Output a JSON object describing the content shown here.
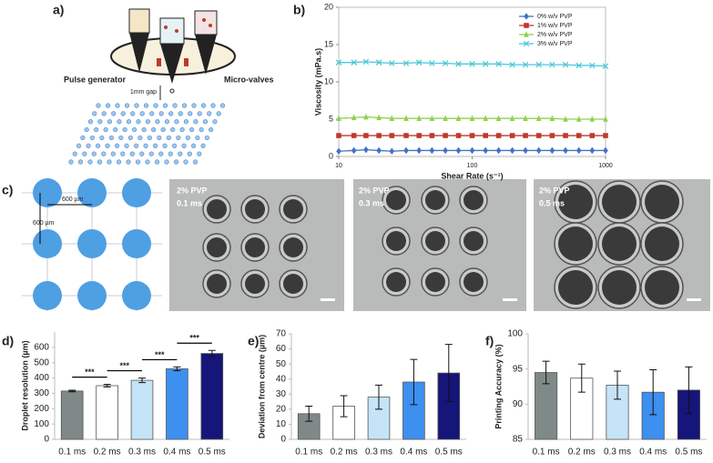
{
  "figure": {
    "panel_labels": [
      "a)",
      "b)",
      "c)",
      "d)",
      "e)",
      "f)"
    ],
    "schematic_labels": [
      "Pulse generator",
      "Micro-valves",
      "1mm gap"
    ],
    "grid_labels": [
      "600 µm",
      "600 µm"
    ],
    "micrographs": [
      {
        "label": "2% PVP",
        "time": "0.1 ms"
      },
      {
        "label": "2% PVP",
        "time": "0.3 ms"
      },
      {
        "label": "2% PVP",
        "time": "0.5 ms"
      }
    ]
  },
  "chart_data": [
    {
      "type": "line",
      "xlabel": "Shear Rate (s⁻¹)",
      "ylabel": "Viscosity (mPa.s)",
      "xscale": "log",
      "x": [
        10,
        13,
        16,
        20,
        25,
        32,
        40,
        50,
        63,
        79,
        100,
        126,
        158,
        200,
        251,
        316,
        398,
        501,
        631,
        794,
        1000
      ],
      "xlim": [
        10,
        1000
      ],
      "xticks": [
        10,
        100,
        1000
      ],
      "ylim": [
        0,
        20
      ],
      "yticks": [
        0,
        5,
        10,
        15,
        20
      ],
      "legend": "upper right",
      "series": [
        {
          "name": "0% w/v PVP",
          "color": "#4472c4",
          "marker": "diamond",
          "values": [
            0.7,
            0.8,
            0.9,
            0.8,
            0.7,
            0.8,
            0.8,
            0.8,
            0.8,
            0.8,
            0.8,
            0.8,
            0.8,
            0.8,
            0.8,
            0.8,
            0.8,
            0.8,
            0.8,
            0.8,
            0.8
          ]
        },
        {
          "name": "1% w/v PVP",
          "color": "#c0392b",
          "marker": "square",
          "values": [
            2.8,
            2.8,
            2.8,
            2.8,
            2.8,
            2.8,
            2.8,
            2.8,
            2.8,
            2.8,
            2.8,
            2.8,
            2.8,
            2.8,
            2.8,
            2.8,
            2.8,
            2.8,
            2.8,
            2.8,
            2.8
          ]
        },
        {
          "name": "2% w/v PVP",
          "color": "#8fd14f",
          "marker": "triangle",
          "values": [
            5.1,
            5.2,
            5.3,
            5.2,
            5.1,
            5.1,
            5.1,
            5.1,
            5.1,
            5.1,
            5.1,
            5.1,
            5.1,
            5.1,
            5.1,
            5.1,
            5.1,
            5.0,
            5.0,
            5.0,
            5.0
          ]
        },
        {
          "name": "3% w/v PVP",
          "color": "#4ec9d8",
          "marker": "x",
          "values": [
            12.6,
            12.6,
            12.7,
            12.6,
            12.5,
            12.5,
            12.6,
            12.5,
            12.5,
            12.4,
            12.4,
            12.4,
            12.4,
            12.3,
            12.3,
            12.3,
            12.3,
            12.3,
            12.2,
            12.2,
            12.1
          ]
        }
      ]
    },
    {
      "type": "bar",
      "ylabel": "Droplet resolution (µm)",
      "categories": [
        "0.1 ms",
        "0.2 ms",
        "0.3 ms",
        "0.4 ms",
        "0.5 ms"
      ],
      "values": [
        315,
        350,
        385,
        460,
        560
      ],
      "errors": [
        5,
        8,
        15,
        12,
        20
      ],
      "colors": [
        "#7f8a88",
        "#ffffff",
        "#c6e4f7",
        "#3d8ff0",
        "#15157a"
      ],
      "ylim": [
        0,
        700
      ],
      "yticks": [
        0,
        100,
        200,
        300,
        400,
        500,
        600
      ],
      "annotations": [
        "***",
        "***",
        "***",
        "***"
      ]
    },
    {
      "type": "bar",
      "ylabel": "Deviation from centre (µm)",
      "categories": [
        "0.1 ms",
        "0.2 ms",
        "0.3 ms",
        "0.4 ms",
        "0.5 ms"
      ],
      "values": [
        17,
        22,
        28,
        38,
        44
      ],
      "errors": [
        5,
        7,
        8,
        15,
        19
      ],
      "colors": [
        "#7f8a88",
        "#ffffff",
        "#c6e4f7",
        "#3d8ff0",
        "#15157a"
      ],
      "ylim": [
        0,
        70
      ],
      "yticks": [
        0,
        10,
        20,
        30,
        40,
        50,
        60,
        70
      ]
    },
    {
      "type": "bar",
      "ylabel": "Printing Accuracy (%)",
      "categories": [
        "0.1 ms",
        "0.2 ms",
        "0.3 ms",
        "0.4 ms",
        "0.5 ms"
      ],
      "values": [
        94.5,
        93.7,
        92.7,
        91.7,
        92
      ],
      "errors": [
        1.6,
        2,
        2,
        3.2,
        3.3
      ],
      "colors": [
        "#7f8a88",
        "#ffffff",
        "#c6e4f7",
        "#3d8ff0",
        "#15157a"
      ],
      "ylim": [
        85,
        100
      ],
      "yticks": [
        85,
        90,
        95,
        100
      ]
    }
  ]
}
